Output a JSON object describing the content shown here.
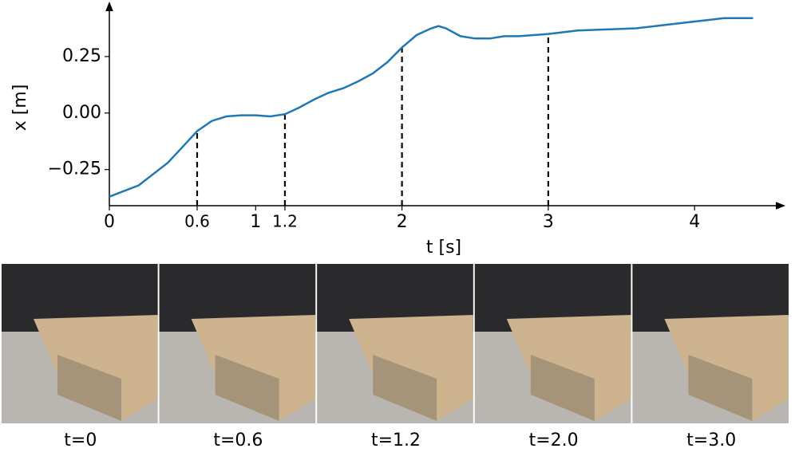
{
  "chart_data": {
    "type": "line",
    "xlabel": "t [s]",
    "ylabel": "x [m]",
    "x": [
      0,
      0.2,
      0.4,
      0.5,
      0.6,
      0.7,
      0.8,
      0.9,
      1.0,
      1.1,
      1.2,
      1.3,
      1.4,
      1.5,
      1.6,
      1.7,
      1.8,
      1.9,
      2.0,
      2.1,
      2.2,
      2.25,
      2.3,
      2.4,
      2.5,
      2.6,
      2.7,
      2.8,
      3.0,
      3.2,
      3.4,
      3.6,
      3.8,
      4.0,
      4.2,
      4.4
    ],
    "series": [
      {
        "color": "#1f77b4",
        "values": [
          -0.37,
          -0.32,
          -0.22,
          -0.15,
          -0.08,
          -0.035,
          -0.015,
          -0.01,
          -0.01,
          -0.015,
          -0.005,
          0.025,
          0.06,
          0.09,
          0.11,
          0.14,
          0.175,
          0.225,
          0.29,
          0.345,
          0.375,
          0.385,
          0.375,
          0.34,
          0.33,
          0.33,
          0.34,
          0.34,
          0.35,
          0.365,
          0.37,
          0.375,
          0.39,
          0.405,
          0.42,
          0.42
        ]
      }
    ],
    "markers": [
      0.6,
      1.2,
      2,
      3
    ],
    "xlim": [
      0,
      4.53
    ],
    "ylim": [
      -0.41,
      0.465
    ],
    "xticks": [
      0,
      0.6,
      1,
      1.2,
      2,
      3,
      4
    ],
    "yticks": [
      {
        "value": -0.25,
        "label": "−0.25"
      },
      {
        "value": 0,
        "label": "0.00"
      },
      0.25
    ]
  },
  "frames": [
    {
      "caption": "t=0"
    },
    {
      "caption": "t=0.6"
    },
    {
      "caption": "t=1.2"
    },
    {
      "caption": "t=2.0"
    },
    {
      "caption": "t=3.0"
    }
  ]
}
